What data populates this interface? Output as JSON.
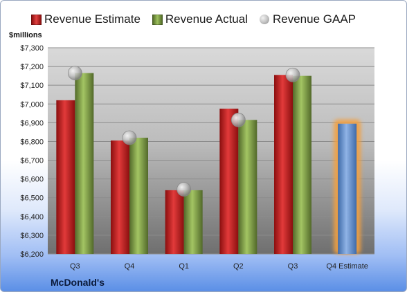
{
  "unit_label": "$millions",
  "company": "McDonald's",
  "legend": [
    {
      "label": "Revenue Estimate",
      "kind": "box",
      "color": "#d32a2a"
    },
    {
      "label": "Revenue Actual",
      "kind": "box",
      "color": "#86a84a"
    },
    {
      "label": "Revenue GAAP",
      "kind": "dot",
      "color": "#b0b0b0"
    }
  ],
  "chart_data": {
    "type": "bar",
    "categories": [
      "Q3",
      "Q4",
      "Q1",
      "Q2",
      "Q3",
      "Q4 Estimate"
    ],
    "series": [
      {
        "name": "Revenue Estimate",
        "values": [
          7020,
          6805,
          6540,
          6975,
          7155,
          null
        ],
        "color": "#d32a2a"
      },
      {
        "name": "Revenue Actual",
        "values": [
          7165,
          6820,
          6540,
          6915,
          7150,
          6895
        ],
        "color": "#86a84a"
      },
      {
        "name": "Revenue GAAP",
        "values": [
          7165,
          6820,
          6545,
          6915,
          7155,
          null
        ],
        "color": "#b0b0b0",
        "style": "marker"
      }
    ],
    "estimate_bar_color": "#6f9bd6",
    "ylim": [
      6200,
      7300
    ],
    "yticks": [
      "$6,200",
      "$6,300",
      "$6,400",
      "$6,500",
      "$6,600",
      "$6,700",
      "$6,800",
      "$6,900",
      "$7,000",
      "$7,100",
      "$7,200",
      "$7,300"
    ],
    "ytick_values": [
      6200,
      6300,
      6400,
      6500,
      6600,
      6700,
      6800,
      6900,
      7000,
      7100,
      7200,
      7300
    ],
    "grid": true,
    "legend_position": "top"
  }
}
